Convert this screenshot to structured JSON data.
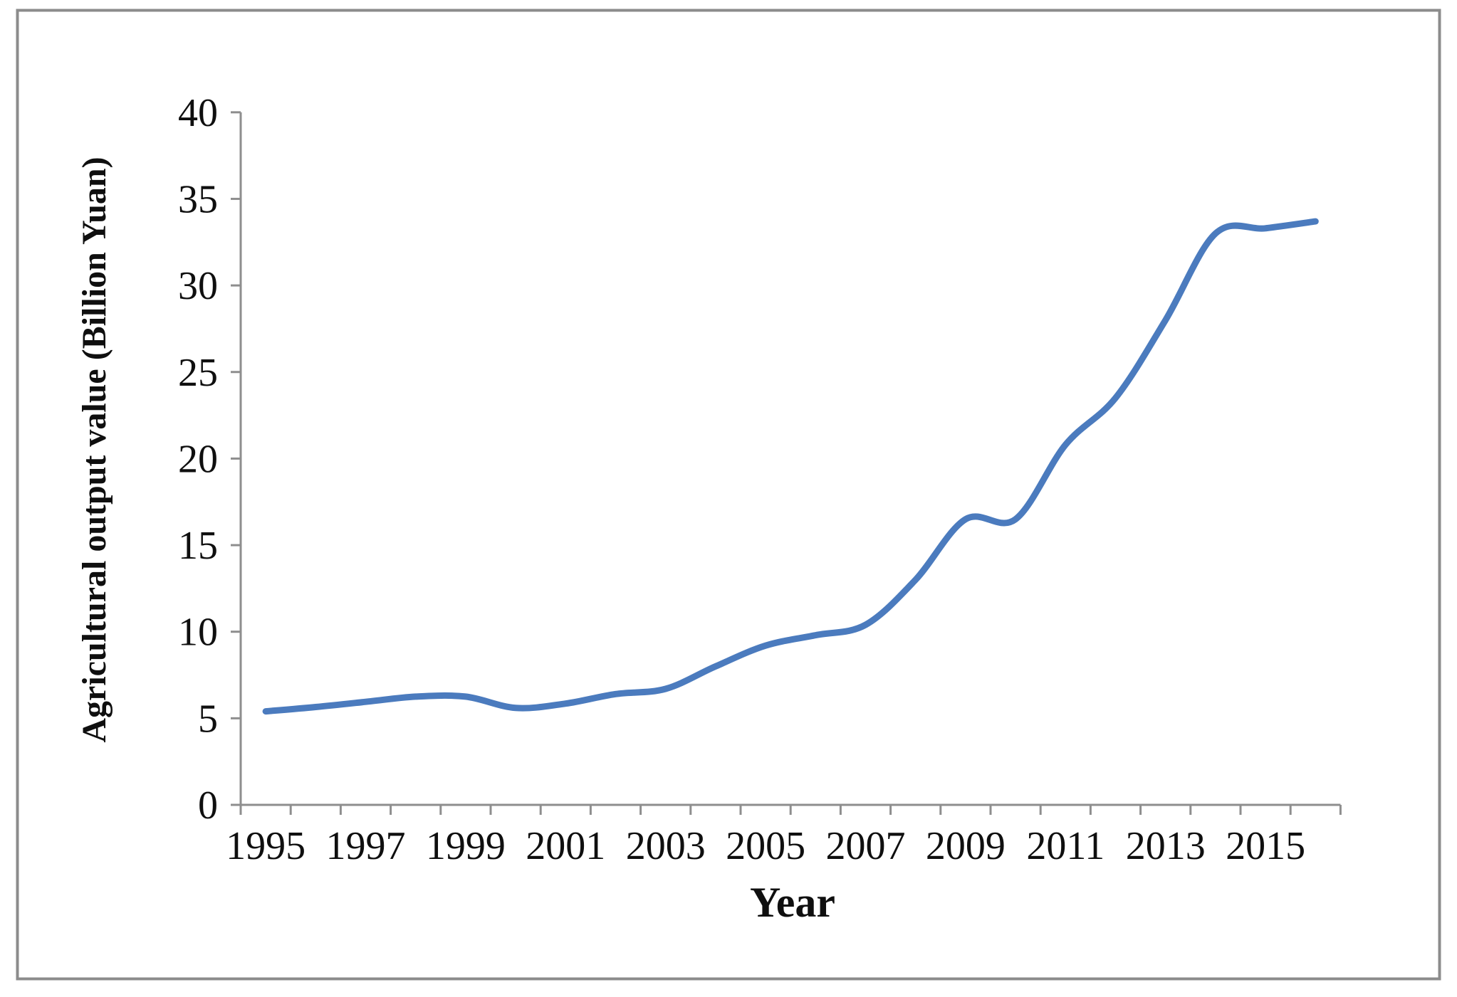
{
  "figure": {
    "background": "#ffffff",
    "border_color": "#8c8c8c",
    "axis_color": "#8e8e8e",
    "text_color": "#0f0f0f",
    "line_color": "#4b7bbe"
  },
  "chart_data": {
    "type": "line",
    "title": "",
    "xlabel": "Year",
    "ylabel": "Agricultural output value (Billion Yuan)",
    "x": [
      1995,
      1996,
      1997,
      1998,
      1999,
      2000,
      2001,
      2002,
      2003,
      2004,
      2005,
      2006,
      2007,
      2008,
      2009,
      2010,
      2011,
      2012,
      2013,
      2014,
      2015,
      2016
    ],
    "series": [
      {
        "name": "Agricultural output value",
        "values": [
          5.4,
          5.65,
          5.95,
          6.25,
          6.25,
          5.6,
          5.85,
          6.4,
          6.7,
          8.0,
          9.2,
          9.8,
          10.4,
          13.0,
          16.5,
          16.5,
          20.8,
          23.5,
          28.0,
          33.0,
          33.3,
          33.7
        ]
      }
    ],
    "ylim": [
      0,
      40
    ],
    "ytick_step": 5,
    "ytick_labels": [
      "0",
      "5",
      "10",
      "15",
      "20",
      "25",
      "30",
      "35",
      "40"
    ],
    "xtick_labels": [
      "1995",
      "1997",
      "1999",
      "2001",
      "2003",
      "2005",
      "2007",
      "2009",
      "2011",
      "2013",
      "2015"
    ],
    "grid": false,
    "legend": "none",
    "smooth": true,
    "line_width": 9
  }
}
